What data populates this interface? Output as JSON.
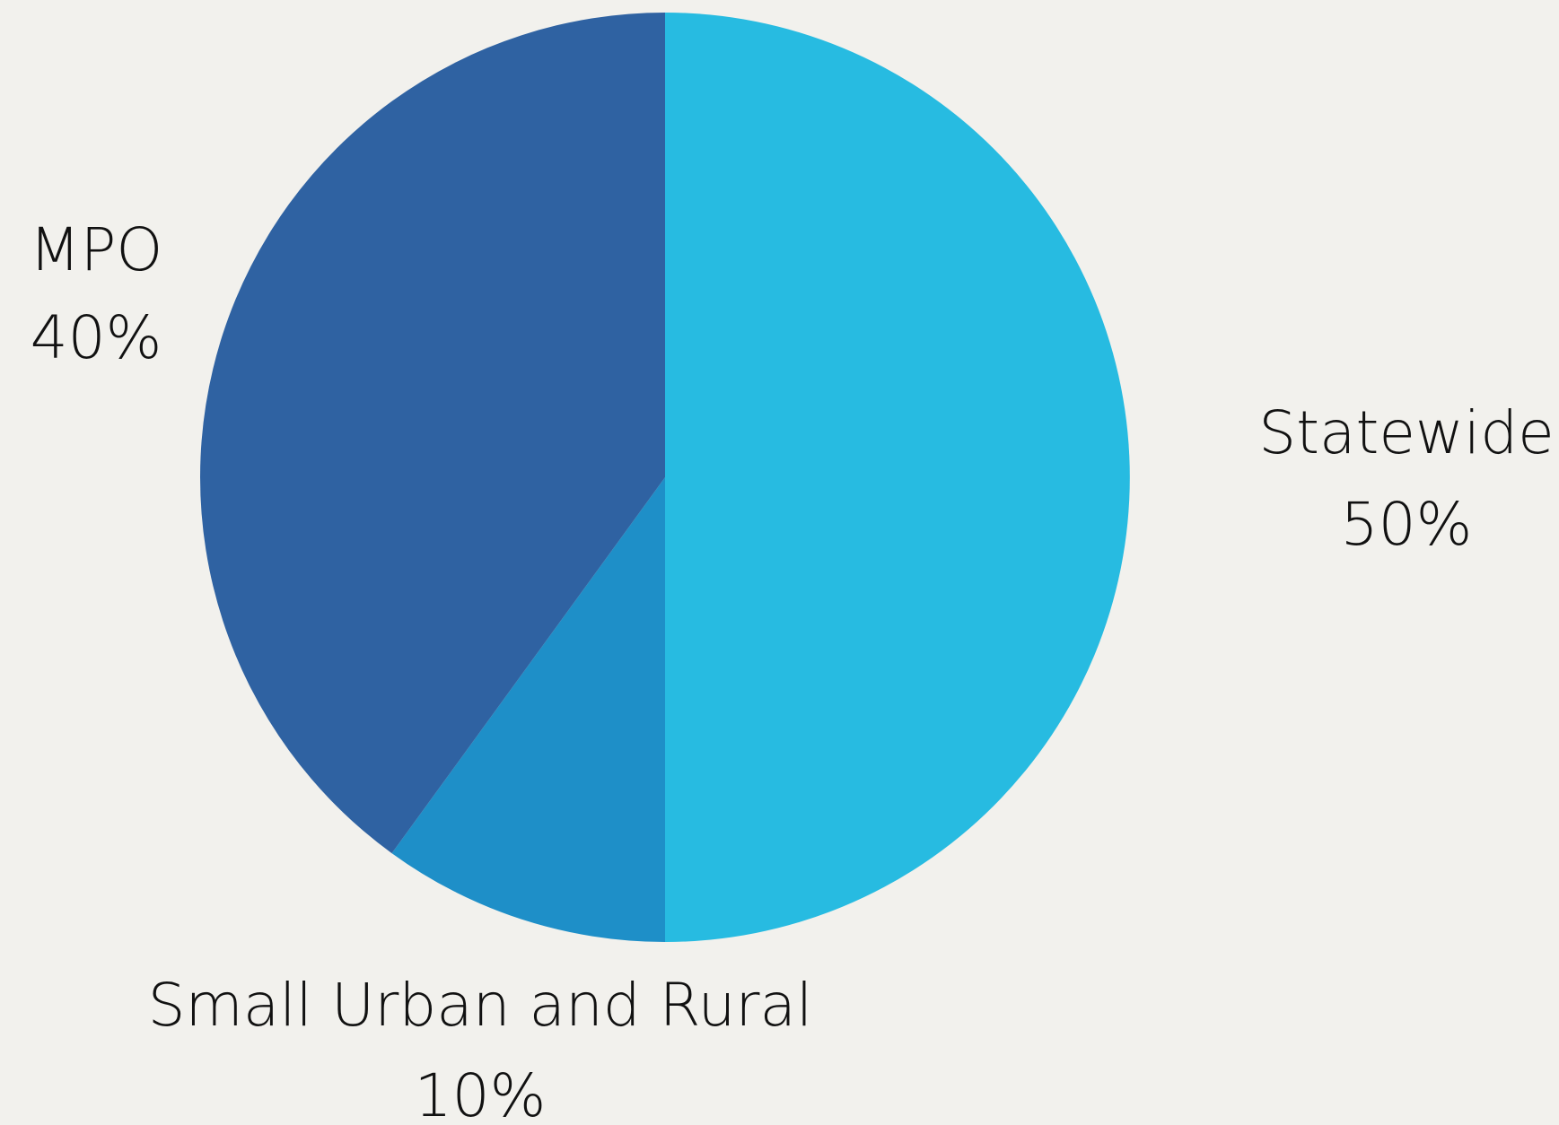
{
  "chart_data": {
    "type": "pie",
    "title": "",
    "categories": [
      "Statewide",
      "Small Urban and Rural",
      "MPO"
    ],
    "values": [
      50,
      10,
      40
    ],
    "value_labels": [
      "50%",
      "10%",
      "40%"
    ],
    "colors": [
      "#27bbe1",
      "#1e8fc8",
      "#2f62a2"
    ],
    "legend": "none",
    "start_angle": "12 o'clock, clockwise"
  }
}
